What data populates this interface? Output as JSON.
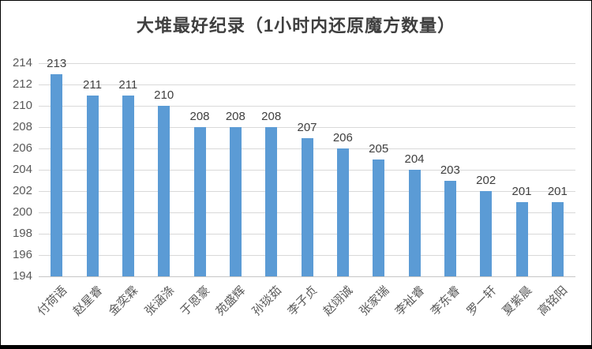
{
  "chart_data": {
    "type": "bar",
    "title": "大堆最好纪录（1小时内还原魔方数量）",
    "categories": [
      "付荷语",
      "赵星睿",
      "金奕霖",
      "张涵涤",
      "于恩豪",
      "苑盛辉",
      "孙琰茹",
      "李子贞",
      "赵翊诚",
      "张家瑞",
      "李祉睿",
      "李东睿",
      "罗一轩",
      "夏紫晨",
      "高铭阳"
    ],
    "values": [
      213,
      211,
      211,
      210,
      208,
      208,
      208,
      207,
      206,
      205,
      204,
      203,
      202,
      201,
      201
    ],
    "xlabel": "",
    "ylabel": "",
    "ylim": [
      194,
      214
    ],
    "yticks": [
      194,
      196,
      198,
      200,
      202,
      204,
      206,
      208,
      210,
      212,
      214
    ],
    "grid": true,
    "legend": "none",
    "bar_color": "#5b9bd5",
    "gridline_color": "#d9d9d9",
    "tick_label_color": "#595959",
    "value_label_color": "#404040",
    "title_color": "#3f3f3f"
  }
}
